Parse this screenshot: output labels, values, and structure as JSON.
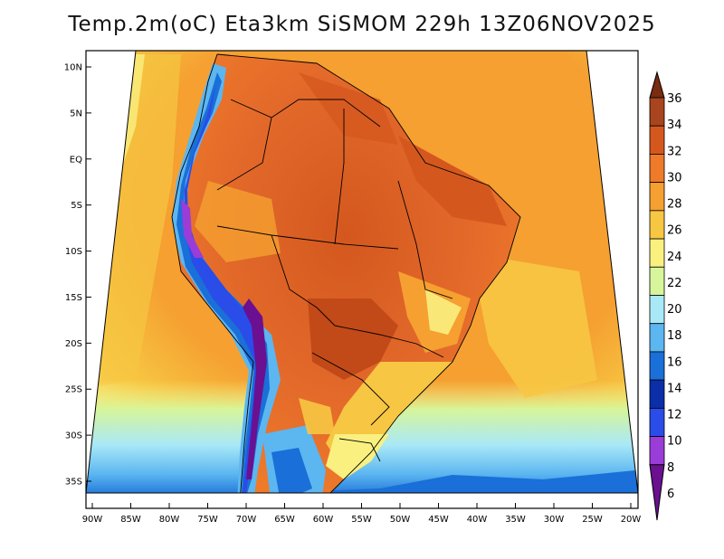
{
  "title": "Temp.2m(oC) Eta3km SiSMOM 229h 13Z06NOV2025",
  "lat_ticks": [
    {
      "label": "10N",
      "lat": 10
    },
    {
      "label": "5N",
      "lat": 5
    },
    {
      "label": "EQ",
      "lat": 0
    },
    {
      "label": "5S",
      "lat": -5
    },
    {
      "label": "10S",
      "lat": -10
    },
    {
      "label": "15S",
      "lat": -15
    },
    {
      "label": "20S",
      "lat": -20
    },
    {
      "label": "25S",
      "lat": -25
    },
    {
      "label": "30S",
      "lat": -30
    },
    {
      "label": "35S",
      "lat": -35
    }
  ],
  "lon_ticks": [
    {
      "label": "90W",
      "lon": -90
    },
    {
      "label": "85W",
      "lon": -85
    },
    {
      "label": "80W",
      "lon": -80
    },
    {
      "label": "75W",
      "lon": -75
    },
    {
      "label": "70W",
      "lon": -70
    },
    {
      "label": "65W",
      "lon": -65
    },
    {
      "label": "60W",
      "lon": -60
    },
    {
      "label": "55W",
      "lon": -55
    },
    {
      "label": "50W",
      "lon": -50
    },
    {
      "label": "45W",
      "lon": -45
    },
    {
      "label": "40W",
      "lon": -40
    },
    {
      "label": "35W",
      "lon": -35
    },
    {
      "label": "30W",
      "lon": -30
    },
    {
      "label": "25W",
      "lon": -25
    },
    {
      "label": "20W",
      "lon": -20
    }
  ],
  "colorbar": {
    "labels": [
      "36",
      "34",
      "32",
      "30",
      "28",
      "26",
      "24",
      "22",
      "20",
      "18",
      "16",
      "14",
      "12",
      "10",
      "8",
      "6"
    ],
    "colors": [
      "#7a2b10",
      "#a8441e",
      "#d4581e",
      "#ee7a2a",
      "#f5a031",
      "#f7c642",
      "#faf080",
      "#d7f59a",
      "#a9e9f7",
      "#5cb6f0",
      "#1a6fd8",
      "#0a2fa8",
      "#2a4ce8",
      "#9a3cd8",
      "#6a1090"
    ]
  }
}
